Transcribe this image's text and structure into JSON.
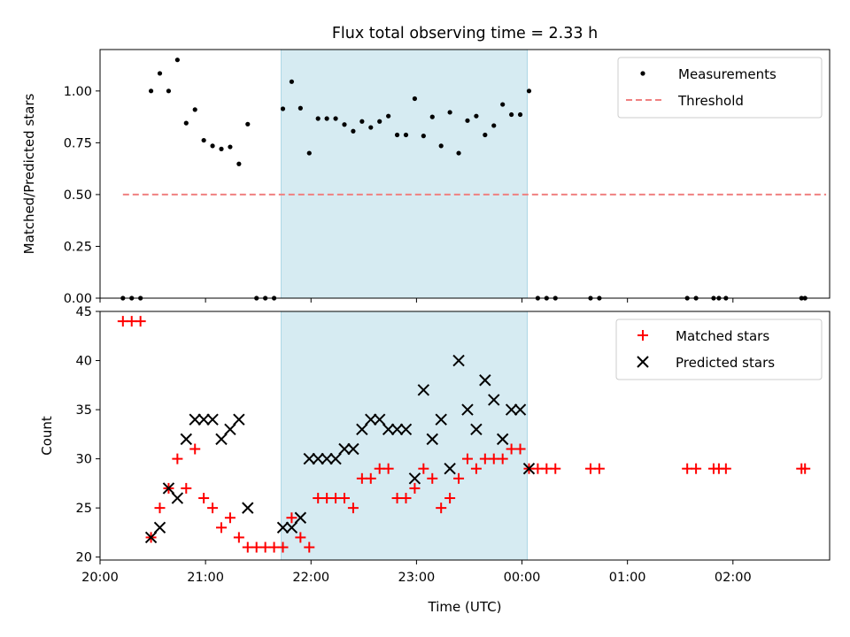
{
  "figure": {
    "title": "Flux total observing time = 2.33 h",
    "xlabel": "Time (UTC)"
  },
  "colors": {
    "span": "#add8e6",
    "matched": "#ff0000",
    "predicted": "#000000",
    "threshold": "#f08080",
    "measurement": "#000000"
  },
  "chart_data": [
    {
      "type": "scatter",
      "ylabel": "Matched/Predicted stars",
      "xlim": [
        "20:00",
        "02:55"
      ],
      "ylim": [
        0,
        1.2
      ],
      "xticks": [
        "20:00",
        "21:00",
        "22:00",
        "23:00",
        "00:00",
        "01:00",
        "02:00"
      ],
      "yticks": [
        "0.00",
        "0.25",
        "0.50",
        "0.75",
        "1.00"
      ],
      "legend": "top-right",
      "highlight_span": [
        "21:43",
        "00:03"
      ],
      "threshold": {
        "name": "Threshold",
        "value": 0.5,
        "x_range": [
          "20:13",
          "02:53"
        ]
      },
      "series": [
        {
          "name": "Measurements",
          "marker": "dot",
          "x": [
            "20:13",
            "20:18",
            "20:23",
            "20:29",
            "20:34",
            "20:39",
            "20:44",
            "20:49",
            "20:54",
            "20:59",
            "21:04",
            "21:09",
            "21:14",
            "21:19",
            "21:24",
            "21:29",
            "21:34",
            "21:39",
            "21:44",
            "21:49",
            "21:54",
            "21:59",
            "22:04",
            "22:09",
            "22:14",
            "22:19",
            "22:24",
            "22:29",
            "22:34",
            "22:39",
            "22:44",
            "22:49",
            "22:54",
            "22:59",
            "23:04",
            "23:09",
            "23:14",
            "23:19",
            "23:24",
            "23:29",
            "23:34",
            "23:39",
            "23:44",
            "23:49",
            "23:54",
            "23:59",
            "00:04",
            "00:09",
            "00:14",
            "00:19",
            "00:39",
            "00:44",
            "01:34",
            "01:39",
            "01:49",
            "01:52",
            "01:56",
            "02:39",
            "02:41"
          ],
          "y": [
            0,
            0,
            0,
            1.0,
            1.085,
            1.0,
            1.15,
            0.845,
            0.91,
            0.762,
            0.735,
            0.72,
            0.73,
            0.648,
            0.84,
            0,
            0,
            0,
            0.914,
            1.045,
            0.917,
            0.7,
            0.867,
            0.867,
            0.867,
            0.838,
            0.806,
            0.853,
            0.824,
            0.853,
            0.879,
            0.788,
            0.788,
            0.963,
            0.783,
            0.875,
            0.735,
            0.897,
            0.7,
            0.857,
            0.879,
            0.788,
            0.833,
            0.935,
            0.886,
            0.886,
            1.0,
            0,
            0,
            0,
            0,
            0,
            0,
            0,
            0,
            0,
            0,
            0,
            0
          ]
        }
      ]
    },
    {
      "type": "scatter",
      "ylabel": "Count",
      "xlim": [
        "20:00",
        "02:55"
      ],
      "ylim": [
        19.7,
        45
      ],
      "xticks": [
        "20:00",
        "21:00",
        "22:00",
        "23:00",
        "00:00",
        "01:00",
        "02:00"
      ],
      "yticks": [
        "20",
        "25",
        "30",
        "35",
        "40",
        "45"
      ],
      "legend": "top-right",
      "highlight_span": [
        "21:43",
        "00:03"
      ],
      "series": [
        {
          "name": "Matched stars",
          "marker": "plus",
          "x": [
            "20:13",
            "20:18",
            "20:23",
            "20:29",
            "20:34",
            "20:39",
            "20:44",
            "20:49",
            "20:54",
            "20:59",
            "21:04",
            "21:09",
            "21:14",
            "21:19",
            "21:24",
            "21:29",
            "21:34",
            "21:39",
            "21:44",
            "21:49",
            "21:54",
            "21:59",
            "22:04",
            "22:09",
            "22:14",
            "22:19",
            "22:24",
            "22:29",
            "22:34",
            "22:39",
            "22:44",
            "22:49",
            "22:54",
            "22:59",
            "23:04",
            "23:09",
            "23:14",
            "23:19",
            "23:24",
            "23:29",
            "23:34",
            "23:39",
            "23:44",
            "23:49",
            "23:54",
            "23:59",
            "00:04",
            "00:09",
            "00:14",
            "00:19",
            "00:39",
            "00:44",
            "01:34",
            "01:39",
            "01:49",
            "01:52",
            "01:56",
            "02:39",
            "02:41"
          ],
          "y": [
            44,
            44,
            44,
            22,
            25,
            27,
            30,
            27,
            31,
            26,
            25,
            23,
            24,
            22,
            21,
            21,
            21,
            21,
            21,
            24,
            22,
            21,
            26,
            26,
            26,
            26,
            25,
            28,
            28,
            29,
            29,
            26,
            26,
            27,
            29,
            28,
            25,
            26,
            28,
            30,
            29,
            30,
            30,
            30,
            31,
            31,
            29,
            29,
            29,
            29,
            29,
            29,
            29,
            29,
            29,
            29,
            29,
            29,
            29
          ]
        },
        {
          "name": "Predicted stars",
          "marker": "x",
          "x": [
            "20:29",
            "20:34",
            "20:39",
            "20:44",
            "20:49",
            "20:54",
            "20:59",
            "21:04",
            "21:09",
            "21:14",
            "21:19",
            "21:24",
            "21:44",
            "21:49",
            "21:54",
            "21:59",
            "22:04",
            "22:09",
            "22:14",
            "22:19",
            "22:24",
            "22:29",
            "22:34",
            "22:39",
            "22:44",
            "22:49",
            "22:54",
            "22:59",
            "23:04",
            "23:09",
            "23:14",
            "23:19",
            "23:24",
            "23:29",
            "23:34",
            "23:39",
            "23:44",
            "23:49",
            "23:54",
            "23:59",
            "00:04"
          ],
          "y": [
            22,
            23,
            27,
            26,
            32,
            34,
            34,
            34,
            32,
            33,
            34,
            25,
            23,
            23,
            24,
            30,
            30,
            30,
            30,
            31,
            31,
            33,
            34,
            34,
            33,
            33,
            33,
            28,
            37,
            32,
            34,
            29,
            40,
            35,
            33,
            38,
            36,
            32,
            35,
            35,
            29
          ]
        }
      ]
    }
  ]
}
